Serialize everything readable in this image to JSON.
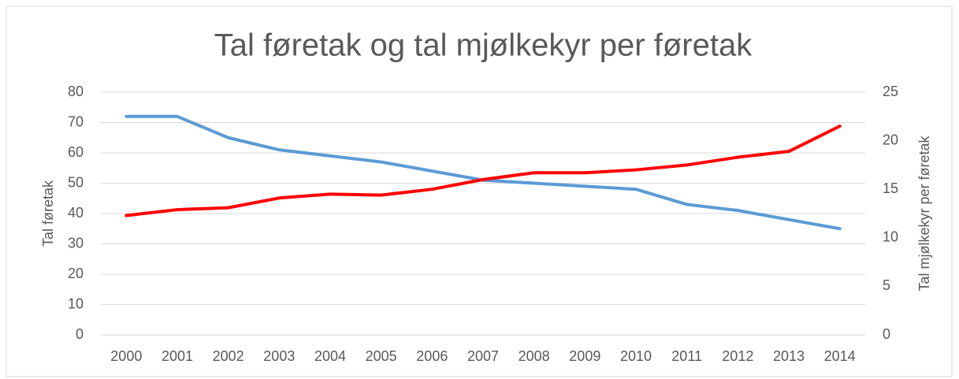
{
  "chart_data": {
    "type": "line",
    "title": "Tal føretak og tal mjølkekyr per føretak",
    "y_label": "Tal føretak",
    "y2_label": "Tal mjølkekyr per føretak",
    "categories": [
      "2000",
      "2001",
      "2002",
      "2003",
      "2004",
      "2005",
      "2006",
      "2007",
      "2008",
      "2009",
      "2010",
      "2011",
      "2012",
      "2013",
      "2014"
    ],
    "series": [
      {
        "color": "#5b9bd5",
        "values": [
          72,
          72,
          65,
          61,
          59,
          57,
          54,
          51,
          50,
          49,
          48,
          43,
          41,
          38,
          35
        ]
      },
      {
        "color": "#ff0000",
        "axis": "y2",
        "values": [
          12.3,
          12.9,
          13.1,
          14.1,
          14.5,
          14.4,
          15.0,
          16.0,
          16.7,
          16.7,
          17.0,
          17.5,
          18.3,
          18.9,
          21.5
        ]
      }
    ],
    "ylim": [
      0,
      80
    ],
    "yticks": [
      0,
      10,
      20,
      30,
      40,
      50,
      60,
      70,
      80
    ],
    "y2lim": [
      0,
      25
    ],
    "y2ticks": [
      0,
      5,
      10,
      15,
      20,
      25
    ],
    "grid": true
  }
}
